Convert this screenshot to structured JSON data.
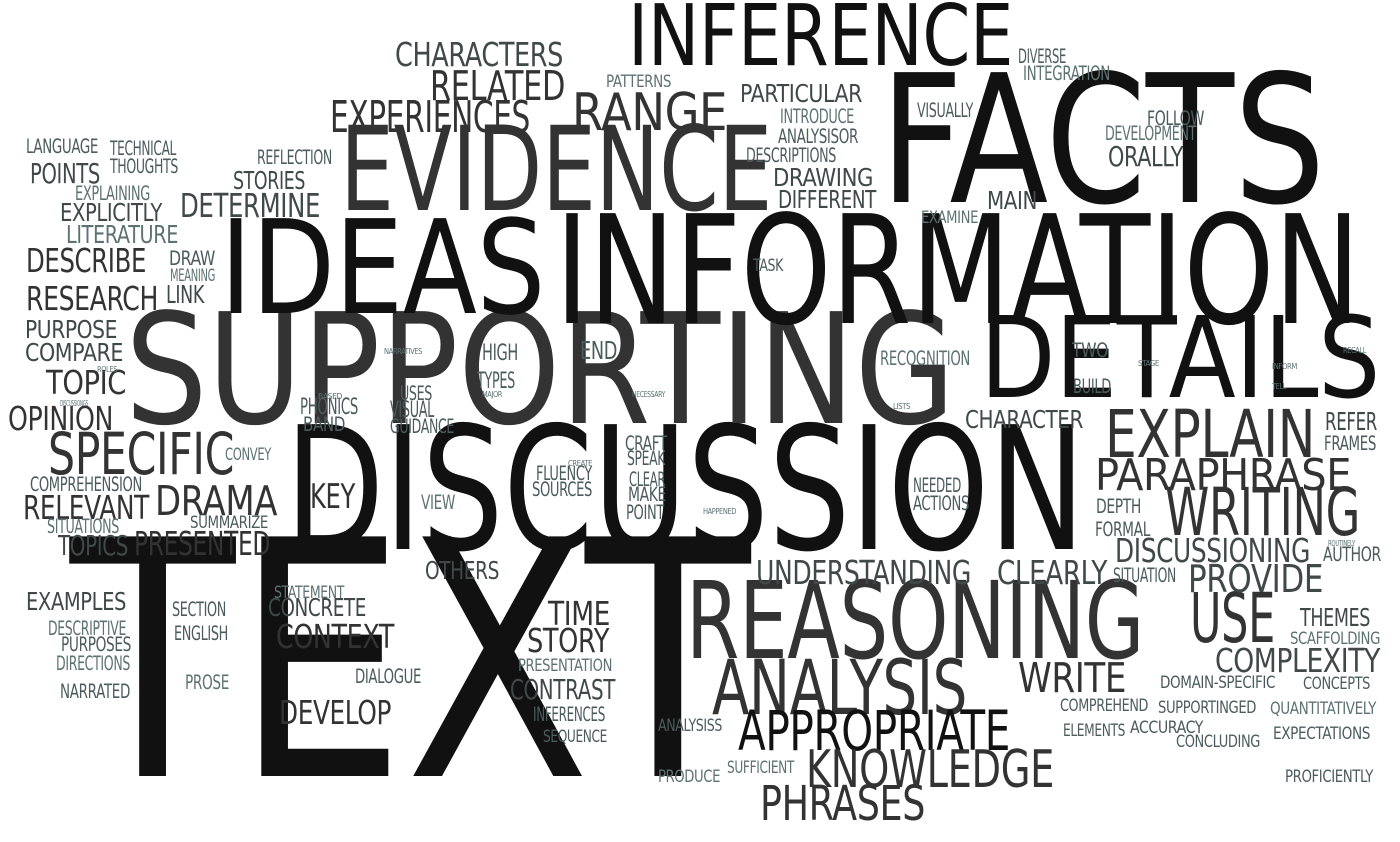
{
  "words": [
    "TEXT",
    "DISCUSSION",
    "SUPPORTING",
    "INFORMATION",
    "IDEAS",
    "FACTS",
    "EVIDENCE",
    "INFERENCE",
    "DETAILS",
    "REASONING",
    "ANALYSIS",
    "EXPLAIN",
    "WRITING",
    "PARAPHRASE",
    "APPROPRIATE",
    "KNOWLEDGE",
    "PHRASES",
    "USE",
    "SPECIFIC",
    "RANGE",
    "EXPERIENCES",
    "RELATED",
    "CHARACTERS",
    "DRAMA",
    "WRITE",
    "PROVIDE",
    "DISCUSSIONING",
    "COMPLEXITY",
    "UNDERSTANDING",
    "CLEARLY",
    "CONTEXT",
    "STORY",
    "TIME",
    "CONTRAST",
    "DEVELOP",
    "CONCRETE",
    "KEY",
    "DETERMINE",
    "RESEARCH",
    "DESCRIBE",
    "OPINION",
    "TOPIC",
    "RELEVANT",
    "PRESENTED",
    "TOPICS",
    "POINTS",
    "EXPLICITLY",
    "LITERATURE",
    "PURPOSE",
    "COMPARE",
    "LANGUAGE",
    "TECHNICAL",
    "THOUGHTS",
    "EXPLAINING",
    "REFLECTION",
    "STORIES",
    "DRAWING",
    "DIFFERENT",
    "DESCRIPTIONS",
    "ANALYSISOR",
    "INTRODUCE",
    "PARTICULAR",
    "PATTERNS",
    "DIVERSE",
    "INTEGRATION",
    "VISUALLY",
    "FOLLOW",
    "DEVELOPMENT",
    "ORALLY",
    "MAIN",
    "EXAMINE",
    "TASK",
    "DRAW",
    "MEANING",
    "LINK",
    "ROLES",
    "DISCUSSIONGS",
    "CONVEY",
    "COMPREHENSION",
    "SITUATIONS",
    "SUMMARIZE",
    "NARRATIVES",
    "HIGH",
    "END",
    "TYPES",
    "MAJOR",
    "USES",
    "VISUAL",
    "GUIDANCE",
    "BASED",
    "PHONICS",
    "BAND",
    "NECESSARY",
    "CRAFT",
    "SPEAK",
    "CREATE",
    "FLUENCY",
    "SOURCES",
    "CLEAR",
    "MAKE",
    "POINT",
    "VIEW",
    "HAPPENED",
    "NEEDED",
    "ACTIONS",
    "RECOGNITION",
    "TWO",
    "BUILD",
    "CHARACTER",
    "STAGE",
    "INFORM",
    "TELL",
    "RECALL",
    "REFER",
    "FRAMES",
    "LISTS",
    "DEPTH",
    "FORMAL",
    "ROUTINELY",
    "AUTHOR",
    "SITUATION",
    "OTHERS",
    "STATEMENT",
    "SECTION",
    "ENGLISH",
    "EXAMPLES",
    "DESCRIPTIVE",
    "PURPOSES",
    "DIRECTIONS",
    "NARRATED",
    "PROSE",
    "DIALOGUE",
    "PRESENTATION",
    "INFERENCES",
    "SEQUENCE",
    "ANALYSISS",
    "PRODUCE",
    "SUFFICIENT",
    "THEMES",
    "SCAFFOLDING",
    "CONCEPTS",
    "DOMAIN-SPECIFIC",
    "COMPREHEND",
    "SUPPORTINGED",
    "QUANTITATIVELY",
    "ELEMENTS",
    "ACCURACY",
    "CONCLUDING",
    "EXPECTATIONS",
    "PROFICIENTLY"
  ]
}
